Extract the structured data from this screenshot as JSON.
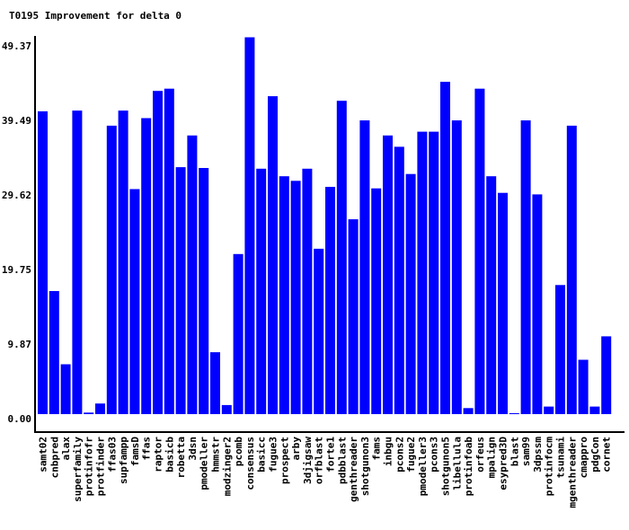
{
  "chart_data": {
    "type": "bar",
    "title": "T0195 Improvement for delta 0",
    "xlabel": "",
    "ylabel": "",
    "ylim": [
      0,
      49.37
    ],
    "yticks": [
      "0.00",
      "9.87",
      "19.75",
      "29.62",
      "39.49",
      "49.37"
    ],
    "ytick_values": [
      0,
      9.87,
      19.75,
      29.62,
      39.49,
      49.37
    ],
    "bar_color": "#0000ff",
    "grid": false,
    "categories": [
      "samt02",
      "cnbpred",
      "alax",
      "superfamily",
      "protinfofr",
      "protfinder",
      "ffas03",
      "supfampp",
      "famsD",
      "ffas",
      "raptor",
      "basicb",
      "robetta",
      "3dsn",
      "pmodeller",
      "hmmstr",
      "modzinger2",
      "pcomb",
      "consensus",
      "basicc",
      "fugue3",
      "prospect",
      "arby",
      "3djigsaw",
      "orfblast",
      "forte1",
      "pdbblast",
      "genthreader",
      "shotgunon3",
      "fams",
      "inbgu",
      "pcons2",
      "fugue2",
      "pmodeller3",
      "pcons3",
      "shotgunon5",
      "libellula",
      "protinfoab",
      "orfeus",
      "mpalign",
      "esypred3D",
      "blast",
      "sam99",
      "3dpssm",
      "protinfocm",
      "tsunami",
      "mgenthreader",
      "cmappro",
      "pdgCon",
      "cornet"
    ],
    "values": [
      40.1,
      16.3,
      6.6,
      40.2,
      0.2,
      1.4,
      38.2,
      40.2,
      29.8,
      39.2,
      42.8,
      43.1,
      32.7,
      36.9,
      32.6,
      8.2,
      1.2,
      21.2,
      49.9,
      32.5,
      42.1,
      31.5,
      30.9,
      32.5,
      21.9,
      30.1,
      41.5,
      25.8,
      38.9,
      29.9,
      36.9,
      35.4,
      31.8,
      37.4,
      37.4,
      44.0,
      38.9,
      0.8,
      43.1,
      31.5,
      29.3,
      0.1,
      38.9,
      29.1,
      1.0,
      17.1,
      38.2,
      7.2,
      1.0,
      10.3
    ]
  }
}
